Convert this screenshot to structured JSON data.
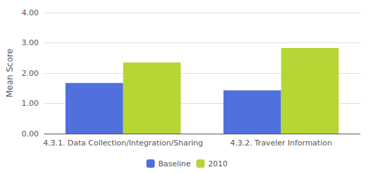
{
  "chart_data": {
    "type": "bar",
    "categories": [
      "4.3.1. Data Collection/Integration/Sharing",
      "4.3.2. Traveler Information"
    ],
    "series": [
      {
        "name": "Baseline",
        "values": [
          1.67,
          1.43
        ]
      },
      {
        "name": "2010",
        "values": [
          2.35,
          2.83
        ]
      }
    ],
    "ylabel": "Mean Score",
    "ylim": [
      0,
      4.0
    ],
    "yticks": [
      {
        "value": 0,
        "label": "0.00"
      },
      {
        "value": 1,
        "label": "1.00"
      },
      {
        "value": 2,
        "label": "2.00"
      },
      {
        "value": 3,
        "label": "3.00"
      },
      {
        "value": 4,
        "label": "4.00"
      }
    ],
    "grid": true,
    "legend": "bottom"
  }
}
